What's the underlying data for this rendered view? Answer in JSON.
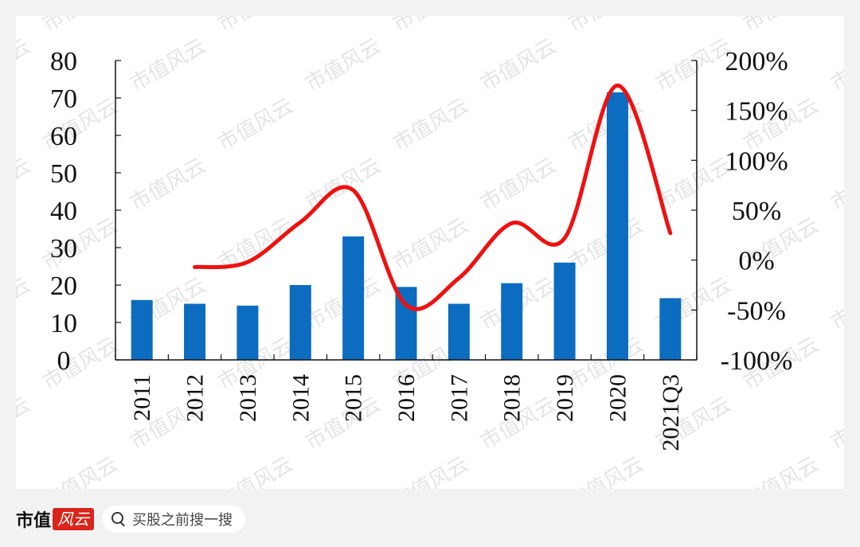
{
  "chart_data": {
    "type": "bar",
    "categories": [
      "2011",
      "2012",
      "2013",
      "2014",
      "2015",
      "2016",
      "2017",
      "2018",
      "2019",
      "2020",
      "2021Q3"
    ],
    "series": [
      {
        "type": "bar",
        "axis": "left",
        "values": [
          16,
          15,
          14.5,
          20,
          33,
          19.5,
          15,
          20.5,
          26,
          71.5,
          16.5
        ],
        "color": "#0b6cc0"
      },
      {
        "type": "line",
        "axis": "right",
        "smooth": true,
        "values": [
          null,
          -7,
          -2,
          38,
          70,
          -45,
          -18,
          37,
          22,
          175,
          27
        ],
        "color": "#ee1111"
      }
    ],
    "left_axis": {
      "ylim": [
        0,
        80
      ],
      "ticks": [
        "0",
        "10",
        "20",
        "30",
        "40",
        "50",
        "60",
        "70",
        "80"
      ]
    },
    "right_axis": {
      "ylim": [
        -100,
        200
      ],
      "ticks": [
        "-100%",
        "-50%",
        "0%",
        "50%",
        "100%",
        "150%",
        "200%"
      ]
    },
    "grid": false,
    "legend": "none"
  },
  "watermark": {
    "text": "市值风云"
  },
  "footer": {
    "brand_text": "市值",
    "brand_badge": "风云",
    "search_placeholder": "买股之前搜一搜",
    "search_icon": "search-icon"
  }
}
